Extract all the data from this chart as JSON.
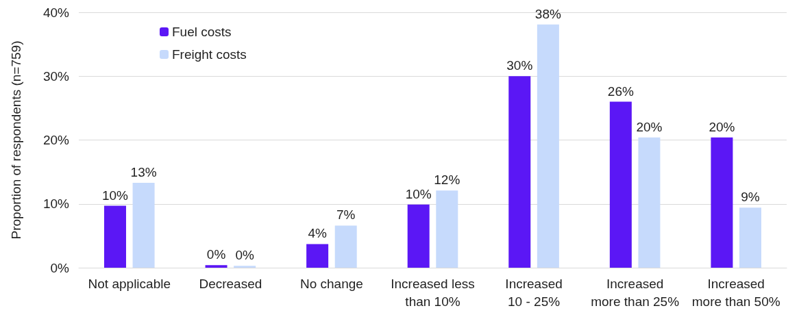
{
  "chart_data": {
    "type": "bar",
    "ylabel": "Proportion of respondents (n=759)",
    "categories": [
      "Not applicable",
      "Decreased",
      "No change",
      "Increased less\nthan 10%",
      "Increased\n10 - 25%",
      "Increased\nmore than 25%",
      "Increased\nmore than 50%"
    ],
    "series": [
      {
        "name": "Fuel costs",
        "color": "#5b17f5",
        "values": [
          9.7,
          0.4,
          3.7,
          9.9,
          30,
          26,
          20.4
        ],
        "value_labels": [
          "10%",
          "0%",
          "4%",
          "10%",
          "30%",
          "26%",
          "20%"
        ]
      },
      {
        "name": "Freight costs",
        "color": "#c6dafc",
        "values": [
          13.3,
          0.3,
          6.6,
          12.1,
          38.1,
          20.4,
          9.4
        ],
        "value_labels": [
          "13%",
          "0%",
          "7%",
          "12%",
          "38%",
          "20%",
          "9%"
        ]
      }
    ],
    "ylim": [
      0,
      40
    ],
    "yticks": [
      {
        "value": 0,
        "label": "0%"
      },
      {
        "value": 10,
        "label": "10%"
      },
      {
        "value": 20,
        "label": "20%"
      },
      {
        "value": 30,
        "label": "30%"
      },
      {
        "value": 40,
        "label": "40%"
      }
    ],
    "grid": "y",
    "legend": "top left"
  }
}
